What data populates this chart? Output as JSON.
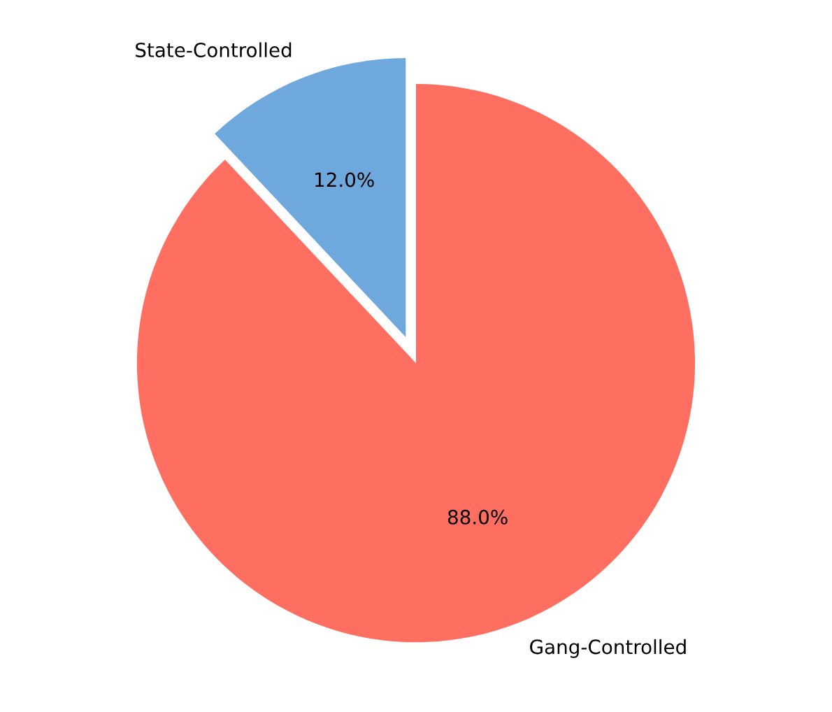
{
  "chart_data": {
    "type": "pie",
    "categories": [
      "State-Controlled",
      "Gang-Controlled"
    ],
    "values": [
      12,
      88
    ],
    "colors": [
      "#6fa8dc",
      "#ff6f61"
    ],
    "value_labels": [
      "12.0%",
      "88.0%"
    ]
  }
}
